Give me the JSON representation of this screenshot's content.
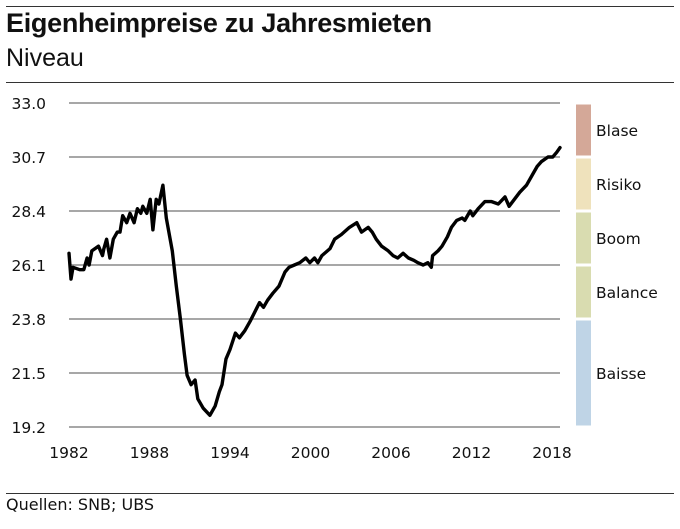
{
  "header": {
    "title": "Eigenheimpreise zu Jahresmieten",
    "subtitle": "Niveau"
  },
  "footer": {
    "source": "Quellen: SNB; UBS"
  },
  "chart_data": {
    "type": "line",
    "title": "Eigenheimpreise zu Jahresmieten",
    "subtitle": "Niveau",
    "xlabel": "",
    "ylabel": "",
    "xlim": [
      1982,
      2018.6
    ],
    "ylim": [
      19.2,
      33.0
    ],
    "x_ticks": [
      1982,
      1988,
      1994,
      2000,
      2006,
      2012,
      2018
    ],
    "y_ticks": [
      "33.0",
      "30.7",
      "28.4",
      "26.1",
      "23.8",
      "21.5",
      "19.2"
    ],
    "grid": "horizontal",
    "line_color": "#000000",
    "series": [
      {
        "name": "Eigenheimpreise zu Jahresmieten",
        "x": [
          1982.0,
          1982.15,
          1982.3,
          1982.8,
          1983.1,
          1983.35,
          1983.5,
          1983.7,
          1984.2,
          1984.5,
          1984.6,
          1984.8,
          1985.05,
          1985.3,
          1985.6,
          1985.8,
          1986.0,
          1986.3,
          1986.55,
          1986.85,
          1987.1,
          1987.35,
          1987.5,
          1987.8,
          1988.05,
          1988.25,
          1988.5,
          1988.7,
          1989.0,
          1989.25,
          1989.7,
          1990.0,
          1990.3,
          1990.6,
          1990.8,
          1991.1,
          1991.4,
          1991.6,
          1992.0,
          1992.5,
          1992.9,
          1993.2,
          1993.4,
          1993.7,
          1994.0,
          1994.4,
          1994.7,
          1995.1,
          1995.5,
          1995.85,
          1996.2,
          1996.5,
          1996.8,
          1997.2,
          1997.65,
          1998.1,
          1998.4,
          1998.8,
          1999.2,
          1999.65,
          1999.95,
          2000.3,
          2000.55,
          2000.85,
          2001.45,
          2001.8,
          2002.3,
          2002.9,
          2003.45,
          2003.8,
          2004.3,
          2004.6,
          2004.9,
          2005.3,
          2005.8,
          2006.15,
          2006.5,
          2006.9,
          2007.3,
          2007.7,
          2008.0,
          2008.4,
          2008.75,
          2009.0,
          2009.1,
          2009.5,
          2009.8,
          2010.2,
          2010.5,
          2010.9,
          2011.3,
          2011.5,
          2011.9,
          2012.1,
          2012.5,
          2013.0,
          2013.5,
          2014.0,
          2014.5,
          2014.8,
          2015.2,
          2015.6,
          2016.1,
          2016.6,
          2016.9,
          2017.2,
          2017.7,
          2018.05,
          2018.35,
          2018.6
        ],
        "values": [
          26.6,
          25.5,
          26.0,
          25.9,
          25.9,
          26.4,
          26.1,
          26.7,
          26.9,
          26.5,
          26.8,
          27.2,
          26.4,
          27.2,
          27.5,
          27.5,
          28.2,
          27.9,
          28.3,
          27.9,
          28.5,
          28.3,
          28.6,
          28.3,
          28.9,
          27.6,
          28.9,
          28.7,
          29.5,
          28.1,
          26.7,
          25.2,
          23.8,
          22.3,
          21.4,
          21.0,
          21.2,
          20.4,
          20.0,
          19.7,
          20.1,
          20.7,
          21.0,
          22.1,
          22.5,
          23.2,
          23.0,
          23.3,
          23.7,
          24.1,
          24.5,
          24.3,
          24.6,
          24.9,
          25.2,
          25.8,
          26.0,
          26.1,
          26.2,
          26.4,
          26.2,
          26.4,
          26.2,
          26.5,
          26.8,
          27.2,
          27.4,
          27.7,
          27.9,
          27.5,
          27.7,
          27.5,
          27.2,
          26.9,
          26.7,
          26.5,
          26.4,
          26.6,
          26.4,
          26.3,
          26.2,
          26.1,
          26.2,
          26.0,
          26.5,
          26.7,
          26.9,
          27.3,
          27.7,
          28.0,
          28.1,
          28.0,
          28.4,
          28.2,
          28.5,
          28.8,
          28.8,
          28.7,
          29.0,
          28.6,
          28.9,
          29.2,
          29.5,
          30.0,
          30.3,
          30.5,
          30.7,
          30.7,
          30.9,
          31.1
        ]
      }
    ],
    "bands": [
      {
        "label": "Blase",
        "from": 30.7,
        "to": 33.0,
        "color": "#d4a898"
      },
      {
        "label": "Risiko",
        "from": 28.4,
        "to": 30.7,
        "color": "#efe2bc"
      },
      {
        "label": "Boom",
        "from": 26.1,
        "to": 28.4,
        "color": "#d9dcb0"
      },
      {
        "label": "Balance",
        "from": 23.8,
        "to": 26.1,
        "color": "#d9dcb0"
      },
      {
        "label": "Baisse",
        "from": 19.2,
        "to": 23.8,
        "color": "#bfd4e6"
      }
    ]
  }
}
